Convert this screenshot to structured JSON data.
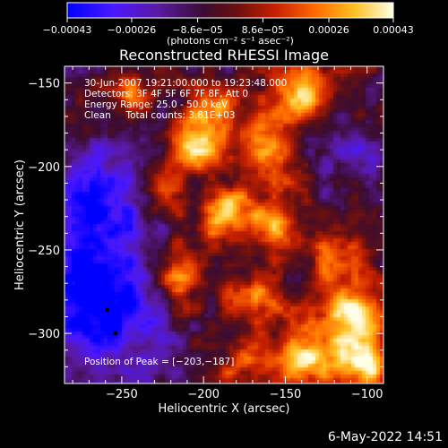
{
  "chart_data": {
    "type": "heatmap",
    "title": "Reconstructed RHESSI Image",
    "xlabel": "Heliocentric X (arcsec)",
    "ylabel": "Heliocentric Y (arcsec)",
    "xlim": [
      -285,
      -90
    ],
    "ylim": [
      -330,
      -140
    ],
    "x_ticks": [
      -250,
      -200,
      -150,
      -100
    ],
    "x_tick_labels": [
      "−250",
      "−200",
      "−150",
      "−100"
    ],
    "y_ticks": [
      -150,
      -200,
      -250,
      -300
    ],
    "y_tick_labels": [
      "−150",
      "−200",
      "−250",
      "−300"
    ],
    "colorbar": {
      "min": -0.00043,
      "max": 0.00043,
      "ticks": [
        -0.00043,
        -0.00026,
        -8.6e-05,
        8.6e-05,
        0.00026,
        0.00043
      ],
      "tick_labels": [
        "−0.00043",
        "−0.00026",
        "−8.6e−05",
        "8.6e−05",
        "0.00026",
        "0.00043"
      ],
      "units_label": "(photons cm⁻² s⁻¹ asec⁻²)",
      "colormap": [
        "#0000ff",
        "#6a0cff",
        "#4a0a55",
        "#7a1515",
        "#d42a00",
        "#ff9000",
        "#ffe050",
        "#ffffff"
      ]
    },
    "annotations": [
      "30-Jun-2007 19:21:00.000 to 19:23:48.000",
      "Detectors: 3F 4F 5F 6F 7F 8F, Att 0",
      "Energy Range: 25.0 - 50.0 keV",
      "Clean     Total counts: 3.81E+03"
    ],
    "peak_label": "Position of Peak = [−203,−187]",
    "peak_position": [
      -203,
      -187
    ],
    "sources": [
      {
        "x": -203,
        "y": -187,
        "sx": 12,
        "sy": 10,
        "amp": 1.0
      },
      {
        "x": -195,
        "y": -165,
        "sx": 10,
        "sy": 10,
        "amp": 0.75
      },
      {
        "x": -140,
        "y": -155,
        "sx": 14,
        "sy": 12,
        "amp": 0.85
      },
      {
        "x": -160,
        "y": -190,
        "sx": 15,
        "sy": 14,
        "amp": 0.8
      },
      {
        "x": -185,
        "y": -230,
        "sx": 12,
        "sy": 12,
        "amp": 0.8
      },
      {
        "x": -155,
        "y": -235,
        "sx": 12,
        "sy": 12,
        "amp": 0.7
      },
      {
        "x": -215,
        "y": -265,
        "sx": 12,
        "sy": 14,
        "amp": 0.75
      },
      {
        "x": -170,
        "y": -280,
        "sx": 14,
        "sy": 12,
        "amp": 0.6
      },
      {
        "x": -110,
        "y": -290,
        "sx": 14,
        "sy": 16,
        "amp": 0.85
      },
      {
        "x": -100,
        "y": -320,
        "sx": 10,
        "sy": 10,
        "amp": 0.95
      },
      {
        "x": -135,
        "y": -315,
        "sx": 14,
        "sy": 12,
        "amp": 0.8
      },
      {
        "x": -120,
        "y": -255,
        "sx": 12,
        "sy": 12,
        "amp": 0.55
      },
      {
        "x": -225,
        "y": -215,
        "sx": 10,
        "sy": 10,
        "amp": 0.55
      },
      {
        "x": -245,
        "y": -155,
        "sx": 10,
        "sy": 8,
        "amp": 0.55
      },
      {
        "x": -170,
        "y": -320,
        "sx": 16,
        "sy": 12,
        "amp": 0.55
      }
    ],
    "negative_sources": [
      {
        "x": -265,
        "y": -280,
        "sx": 28,
        "sy": 30,
        "amp": 0.95
      },
      {
        "x": -265,
        "y": -215,
        "sx": 20,
        "sy": 25,
        "amp": 0.55
      },
      {
        "x": -115,
        "y": -195,
        "sx": 18,
        "sy": 16,
        "amp": 0.3
      }
    ],
    "markers": [
      {
        "x": -259,
        "y": -286
      },
      {
        "x": -254,
        "y": -300
      }
    ]
  },
  "footer": {
    "timestamp": "6-May-2022 14:51"
  }
}
